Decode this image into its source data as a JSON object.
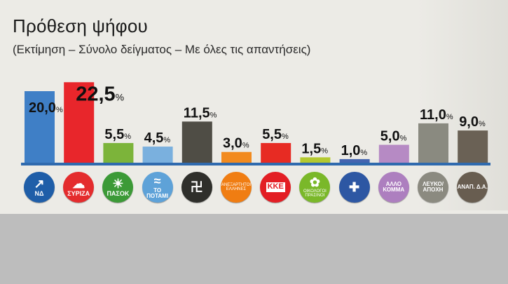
{
  "chart_data": {
    "type": "bar",
    "title": "Πρόθεση ψήφου",
    "subtitle": "(Εκτίμηση – Σύνολο δείγματος – Με όλες τις απαντήσεις)",
    "unit": "%",
    "categories": [
      "ΝΔ",
      "ΣΥΡΙΖΑ",
      "ΠΑΣΟΚ",
      "ΠΟΤΑΜΙ",
      "ΧΡΥΣΗ ΑΥΓΗ",
      "ΑΝΕΞΑΡΤΗΤΟΙ ΕΛΛΗΝΕΣ",
      "ΚΚΕ",
      "ΟΙΚΟΛΟΓΟΙ ΠΡΑΣΙΝΟΙ",
      "ΛΑΟΣ",
      "ΑΛΛΟ ΚΟΜΜΑ",
      "ΛΕΥΚΟ/ΑΠΟΧΗ",
      "ΑΝΑΠ. Δ.Α."
    ],
    "values": [
      20.0,
      22.5,
      5.5,
      4.5,
      11.5,
      3.0,
      5.5,
      1.5,
      1.0,
      5.0,
      11.0,
      9.0
    ],
    "labels": [
      "20,0",
      "22,5",
      "5,5",
      "4,5",
      "11,5",
      "3,0",
      "5,5",
      "1,5",
      "1,0",
      "5,0",
      "11,0",
      "9,0"
    ],
    "ylim": [
      0,
      25
    ],
    "highlight_index": 1
  },
  "colors": {
    "bars": [
      "#3f7fc6",
      "#e8262b",
      "#7cb43a",
      "#7ab0de",
      "#4f4d45",
      "#f28a1e",
      "#e72b23",
      "#b3c92f",
      "#4464b0",
      "#b68ac4",
      "#8a8a80",
      "#6a6155"
    ],
    "logos": [
      "#1f5ea8",
      "#e42c2d",
      "#3c9a37",
      "#5ea2d8",
      "#2f2f2b",
      "#f07d12",
      "#e31e24",
      "#7ab829",
      "#2d57a3",
      "#ad7fbf",
      "#8b8a80",
      "#685d50"
    ],
    "axis": "#2f6aae"
  },
  "logos": [
    {
      "name": "nd",
      "symbol": "↗",
      "text": "ΝΔ"
    },
    {
      "name": "syriza",
      "symbol": "☁",
      "text": "ΣΥΡΙΖΑ"
    },
    {
      "name": "pasok",
      "symbol": "☀",
      "text": "ΠΑΣΟΚ"
    },
    {
      "name": "potami",
      "symbol": "≈",
      "text": "ΤΟ ΠΟΤΑΜΙ"
    },
    {
      "name": "golden-dawn",
      "symbol": "卍",
      "text": ""
    },
    {
      "name": "anel",
      "symbol": "",
      "text": "ΑΝΕΞΑΡΤΗΤΟΙ ΕΛΛΗΝΕΣ"
    },
    {
      "name": "kke",
      "symbol": "",
      "text": "ΚΚΕ"
    },
    {
      "name": "greens",
      "symbol": "✿",
      "text": "ΟΙΚΟΛΟΓΟΙ ΠΡΑΣΙΝΟΙ"
    },
    {
      "name": "laos",
      "symbol": "✚",
      "text": ""
    },
    {
      "name": "other-party",
      "symbol": "",
      "text": "ΑΛΛΟ ΚΟΜΜΑ"
    },
    {
      "name": "blank-abstain",
      "symbol": "",
      "text": "ΛΕΥΚΟ/ ΑΠΟΧΗ"
    },
    {
      "name": "undecided",
      "symbol": "",
      "text": "ΑΝΑΠ. Δ.Α."
    }
  ]
}
